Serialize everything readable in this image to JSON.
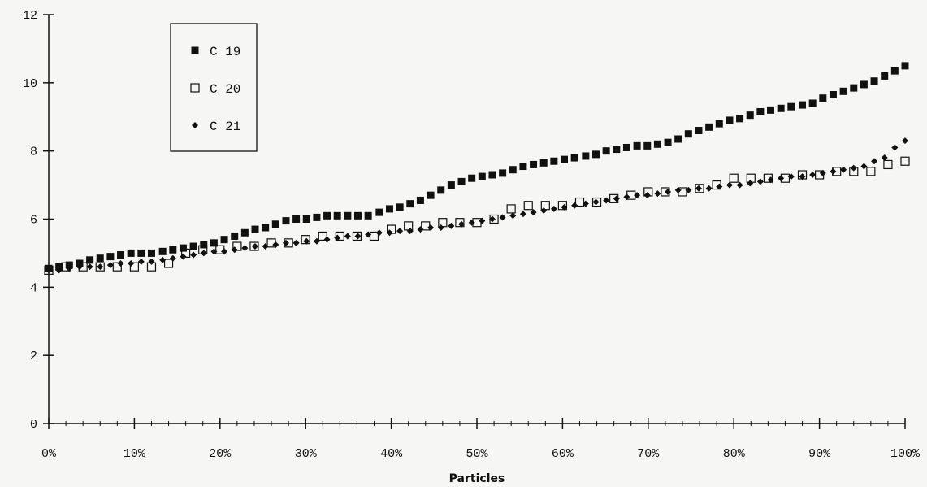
{
  "chart_data": {
    "type": "scatter",
    "title": "",
    "xlabel": "Particles",
    "ylabel": "",
    "xlim": [
      0,
      100
    ],
    "ylim": [
      0,
      12
    ],
    "x_ticks": [
      "0%",
      "10%",
      "20%",
      "30%",
      "40%",
      "50%",
      "60%",
      "70%",
      "80%",
      "90%",
      "100%"
    ],
    "y_ticks": [
      "0",
      "2",
      "4",
      "6",
      "8",
      "10",
      "12"
    ],
    "grid": false,
    "legend_position": "top-left",
    "series": [
      {
        "name": "C 19",
        "marker": "filled-square",
        "color": "#111111",
        "x": [
          0,
          1.2,
          2.4,
          3.6,
          4.8,
          6.0,
          7.2,
          8.4,
          9.6,
          10.8,
          12.0,
          13.3,
          14.5,
          15.7,
          16.9,
          18.1,
          19.3,
          20.5,
          21.7,
          22.9,
          24.1,
          25.3,
          26.5,
          27.7,
          28.9,
          30.1,
          31.3,
          32.5,
          33.7,
          34.9,
          36.1,
          37.3,
          38.6,
          39.8,
          41.0,
          42.2,
          43.4,
          44.6,
          45.8,
          47.0,
          48.2,
          49.4,
          50.6,
          51.8,
          53.0,
          54.2,
          55.4,
          56.6,
          57.8,
          59.0,
          60.2,
          61.4,
          62.7,
          63.9,
          65.1,
          66.3,
          67.5,
          68.7,
          69.9,
          71.1,
          72.3,
          73.5,
          74.7,
          75.9,
          77.1,
          78.3,
          79.5,
          80.7,
          81.9,
          83.1,
          84.3,
          85.5,
          86.7,
          88.0,
          89.2,
          90.4,
          91.6,
          92.8,
          94.0,
          95.2,
          96.4,
          97.6,
          98.8,
          100
        ],
        "y": [
          4.55,
          4.6,
          4.65,
          4.7,
          4.8,
          4.85,
          4.9,
          4.95,
          5.0,
          5.0,
          5.0,
          5.05,
          5.1,
          5.15,
          5.2,
          5.25,
          5.3,
          5.4,
          5.5,
          5.6,
          5.7,
          5.75,
          5.85,
          5.95,
          6.0,
          6.0,
          6.05,
          6.1,
          6.1,
          6.1,
          6.1,
          6.1,
          6.2,
          6.3,
          6.35,
          6.45,
          6.55,
          6.7,
          6.85,
          7.0,
          7.1,
          7.2,
          7.25,
          7.3,
          7.35,
          7.45,
          7.55,
          7.6,
          7.65,
          7.7,
          7.75,
          7.8,
          7.85,
          7.9,
          8.0,
          8.05,
          8.1,
          8.15,
          8.15,
          8.2,
          8.25,
          8.35,
          8.5,
          8.6,
          8.7,
          8.8,
          8.9,
          8.95,
          9.05,
          9.15,
          9.2,
          9.25,
          9.3,
          9.35,
          9.4,
          9.55,
          9.65,
          9.75,
          9.85,
          9.95,
          10.05,
          10.2,
          10.35,
          10.5
        ]
      },
      {
        "name": "C 20",
        "marker": "open-square",
        "color": "#111111",
        "x": [
          0,
          2.0,
          4.0,
          6.0,
          8.0,
          10.0,
          12.0,
          14.0,
          16.0,
          18.0,
          20.0,
          22.0,
          24.0,
          26.0,
          28.0,
          30.0,
          32.0,
          34.0,
          36.0,
          38.0,
          40.0,
          42.0,
          44.0,
          46.0,
          48.0,
          50.0,
          52.0,
          54.0,
          56.0,
          58.0,
          60.0,
          62.0,
          64.0,
          66.0,
          68.0,
          70.0,
          72.0,
          74.0,
          76.0,
          78.0,
          80.0,
          82.0,
          84.0,
          86.0,
          88.0,
          90.0,
          92.0,
          94.0,
          96.0,
          98.0,
          100
        ],
        "y": [
          4.5,
          4.6,
          4.6,
          4.6,
          4.6,
          4.6,
          4.6,
          4.7,
          5.0,
          5.1,
          5.1,
          5.2,
          5.2,
          5.3,
          5.3,
          5.4,
          5.5,
          5.5,
          5.5,
          5.5,
          5.7,
          5.8,
          5.8,
          5.9,
          5.9,
          5.9,
          6.0,
          6.3,
          6.4,
          6.4,
          6.4,
          6.5,
          6.5,
          6.6,
          6.7,
          6.8,
          6.8,
          6.8,
          6.9,
          7.0,
          7.2,
          7.2,
          7.2,
          7.2,
          7.3,
          7.3,
          7.4,
          7.4,
          7.4,
          7.6,
          7.7
        ]
      },
      {
        "name": "C 21",
        "marker": "diamond",
        "color": "#111111",
        "x": [
          0,
          1.2,
          2.4,
          3.6,
          4.8,
          6.0,
          7.2,
          8.4,
          9.6,
          10.8,
          12.0,
          13.3,
          14.5,
          15.7,
          16.9,
          18.1,
          19.3,
          20.5,
          21.7,
          22.9,
          24.1,
          25.3,
          26.5,
          27.7,
          28.9,
          30.1,
          31.3,
          32.5,
          33.7,
          34.9,
          36.1,
          37.3,
          38.6,
          39.8,
          41.0,
          42.2,
          43.4,
          44.6,
          45.8,
          47.0,
          48.2,
          49.4,
          50.6,
          51.8,
          53.0,
          54.2,
          55.4,
          56.6,
          57.8,
          59.0,
          60.2,
          61.4,
          62.7,
          63.9,
          65.1,
          66.3,
          67.5,
          68.7,
          69.9,
          71.1,
          72.3,
          73.5,
          74.7,
          75.9,
          77.1,
          78.3,
          79.5,
          80.7,
          81.9,
          83.1,
          84.3,
          85.5,
          86.7,
          88.0,
          89.2,
          90.4,
          91.6,
          92.8,
          94.0,
          95.2,
          96.4,
          97.6,
          98.8,
          100
        ],
        "y": [
          4.5,
          4.5,
          4.55,
          4.6,
          4.6,
          4.6,
          4.65,
          4.7,
          4.7,
          4.75,
          4.75,
          4.8,
          4.85,
          4.9,
          4.95,
          5.0,
          5.05,
          5.05,
          5.1,
          5.15,
          5.2,
          5.2,
          5.25,
          5.3,
          5.3,
          5.35,
          5.35,
          5.4,
          5.45,
          5.5,
          5.5,
          5.55,
          5.6,
          5.6,
          5.65,
          5.65,
          5.7,
          5.75,
          5.75,
          5.8,
          5.85,
          5.9,
          5.95,
          6.0,
          6.05,
          6.1,
          6.15,
          6.2,
          6.25,
          6.3,
          6.35,
          6.4,
          6.45,
          6.5,
          6.55,
          6.6,
          6.65,
          6.7,
          6.7,
          6.75,
          6.8,
          6.85,
          6.85,
          6.9,
          6.9,
          6.95,
          7.0,
          7.0,
          7.05,
          7.1,
          7.15,
          7.2,
          7.25,
          7.25,
          7.3,
          7.35,
          7.4,
          7.45,
          7.5,
          7.55,
          7.7,
          7.8,
          8.1,
          8.3
        ]
      }
    ]
  }
}
